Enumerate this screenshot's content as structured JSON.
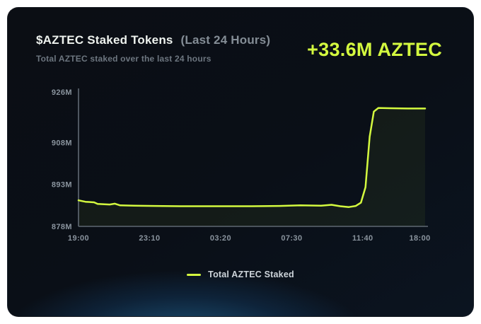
{
  "card": {
    "title": "$AZTEC Staked Tokens",
    "title_suffix": "(Last 24 Hours)",
    "subtitle": "Total AZTEC staked over the last 24 hours",
    "delta": "+33.6M AZTEC"
  },
  "legend": {
    "label": "Total AZTEC Staked"
  },
  "colors": {
    "accent": "#d4fa3f",
    "card_background": "#0a0d13",
    "bottom_glow": "#2d8cc8",
    "title_text": "#eef2ee",
    "muted_text": "#848d96",
    "axis_line": "#5f6973",
    "tick_label": "#8a949e"
  },
  "chart_data": {
    "type": "line",
    "title": "$AZTEC Staked Tokens (Last 24 Hours)",
    "subtitle": "Total AZTEC staked over the last 24 hours",
    "xlabel": "",
    "ylabel": "",
    "unit": "M AZTEC",
    "ylim": [
      878,
      926
    ],
    "grid": false,
    "legend_position": "bottom-center",
    "x_encoding": "fraction of plot width, time axis runs 19:00 to 18:00",
    "y_ticks": [
      {
        "value": 878,
        "label": "878M"
      },
      {
        "value": 893,
        "label": "893M"
      },
      {
        "value": 908,
        "label": "908M"
      },
      {
        "value": 926,
        "label": "926M"
      }
    ],
    "x_ticks": [
      {
        "pos": 0.0,
        "label": "19:00"
      },
      {
        "pos": 0.205,
        "label": "23:10"
      },
      {
        "pos": 0.41,
        "label": "03:20"
      },
      {
        "pos": 0.615,
        "label": "07:30"
      },
      {
        "pos": 0.82,
        "label": "11:40"
      },
      {
        "pos": 0.985,
        "label": "18:00"
      }
    ],
    "series": [
      {
        "name": "Total AZTEC Staked",
        "color": "#d4fa3f",
        "points": [
          [
            0.0,
            887.3
          ],
          [
            0.02,
            886.8
          ],
          [
            0.045,
            886.6
          ],
          [
            0.055,
            886.0
          ],
          [
            0.09,
            885.8
          ],
          [
            0.105,
            886.1
          ],
          [
            0.12,
            885.5
          ],
          [
            0.16,
            885.4
          ],
          [
            0.22,
            885.3
          ],
          [
            0.3,
            885.2
          ],
          [
            0.4,
            885.2
          ],
          [
            0.5,
            885.2
          ],
          [
            0.58,
            885.3
          ],
          [
            0.64,
            885.5
          ],
          [
            0.7,
            885.4
          ],
          [
            0.73,
            885.7
          ],
          [
            0.755,
            885.2
          ],
          [
            0.78,
            884.9
          ],
          [
            0.8,
            885.3
          ],
          [
            0.815,
            886.5
          ],
          [
            0.828,
            892.0
          ],
          [
            0.84,
            910.0
          ],
          [
            0.852,
            919.0
          ],
          [
            0.865,
            920.3
          ],
          [
            0.9,
            920.2
          ],
          [
            0.95,
            920.1
          ],
          [
            1.0,
            920.1
          ]
        ]
      }
    ]
  }
}
